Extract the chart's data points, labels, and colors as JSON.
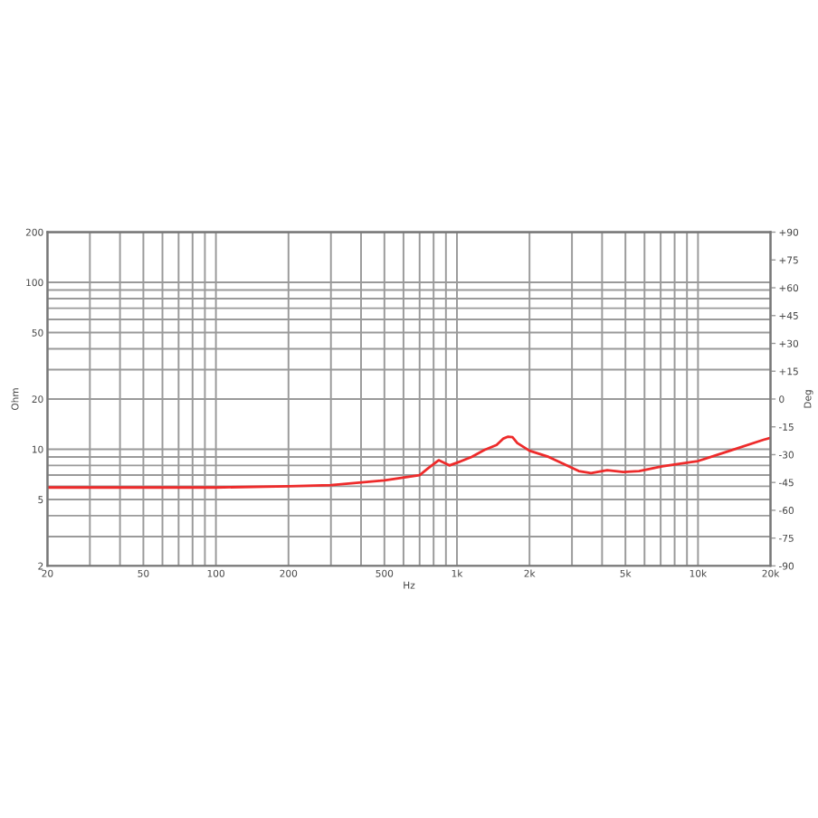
{
  "chart_data": {
    "type": "line",
    "xlabel": "Hz",
    "ylabel": "Ohm",
    "y2label": "Deg",
    "log": "xy",
    "grid": true,
    "xlim": [
      20,
      20000
    ],
    "ylim": [
      2,
      200
    ],
    "y2lim": [
      -90,
      90
    ],
    "xticks": [
      20,
      {
        "value": 30,
        "label": null
      },
      {
        "value": 40,
        "label": null
      },
      50,
      {
        "value": 60,
        "label": null
      },
      {
        "value": 70,
        "label": null
      },
      {
        "value": 80,
        "label": null
      },
      {
        "value": 90,
        "label": null
      },
      100,
      200,
      {
        "value": 300,
        "label": null
      },
      {
        "value": 400,
        "label": null
      },
      500,
      {
        "value": 600,
        "label": null
      },
      {
        "value": 700,
        "label": null
      },
      {
        "value": 800,
        "label": null
      },
      {
        "value": 900,
        "label": null
      },
      {
        "value": 1000,
        "label": "1k"
      },
      {
        "value": 2000,
        "label": "2k"
      },
      {
        "value": 3000,
        "label": null
      },
      {
        "value": 4000,
        "label": null
      },
      {
        "value": 5000,
        "label": "5k"
      },
      {
        "value": 6000,
        "label": null
      },
      {
        "value": 7000,
        "label": null
      },
      {
        "value": 8000,
        "label": null
      },
      {
        "value": 9000,
        "label": null
      },
      {
        "value": 10000,
        "label": "10k"
      },
      {
        "value": 20000,
        "label": "20k"
      }
    ],
    "yticks": [
      2,
      {
        "value": 3,
        "label": null
      },
      {
        "value": 4,
        "label": null
      },
      5,
      {
        "value": 6,
        "label": null
      },
      {
        "value": 7,
        "label": null
      },
      {
        "value": 8,
        "label": null
      },
      {
        "value": 9,
        "label": null
      },
      10,
      20,
      {
        "value": 30,
        "label": null
      },
      {
        "value": 40,
        "label": null
      },
      50,
      {
        "value": 60,
        "label": null
      },
      {
        "value": 70,
        "label": null
      },
      {
        "value": 80,
        "label": null
      },
      {
        "value": 90,
        "label": null
      },
      100,
      200
    ],
    "y2ticks": [
      -90,
      -75,
      -60,
      -45,
      -30,
      -15,
      0,
      {
        "value": 15,
        "label": "+15"
      },
      {
        "value": 30,
        "label": "+30"
      },
      {
        "value": 45,
        "label": "+45"
      },
      {
        "value": 60,
        "label": "+60"
      },
      {
        "value": 75,
        "label": "+75"
      },
      {
        "value": 90,
        "label": "+90"
      }
    ],
    "x": [
      20,
      50,
      100,
      200,
      300,
      500,
      700,
      760,
      840,
      930,
      1000,
      1150,
      1300,
      1460,
      1560,
      1630,
      1700,
      1780,
      2000,
      2400,
      3200,
      3600,
      4200,
      4900,
      5700,
      7100,
      10000,
      13300,
      18700,
      20000
    ],
    "series": [
      {
        "color": "#ee2b2b",
        "values": [
          5.9,
          5.9,
          5.9,
          6.0,
          6.1,
          6.5,
          7.0,
          7.7,
          8.6,
          8.0,
          8.3,
          9.0,
          9.9,
          10.6,
          11.6,
          11.9,
          11.8,
          10.9,
          9.8,
          9.0,
          7.4,
          7.2,
          7.5,
          7.3,
          7.4,
          7.9,
          8.5,
          9.7,
          11.4,
          11.7
        ]
      }
    ]
  }
}
